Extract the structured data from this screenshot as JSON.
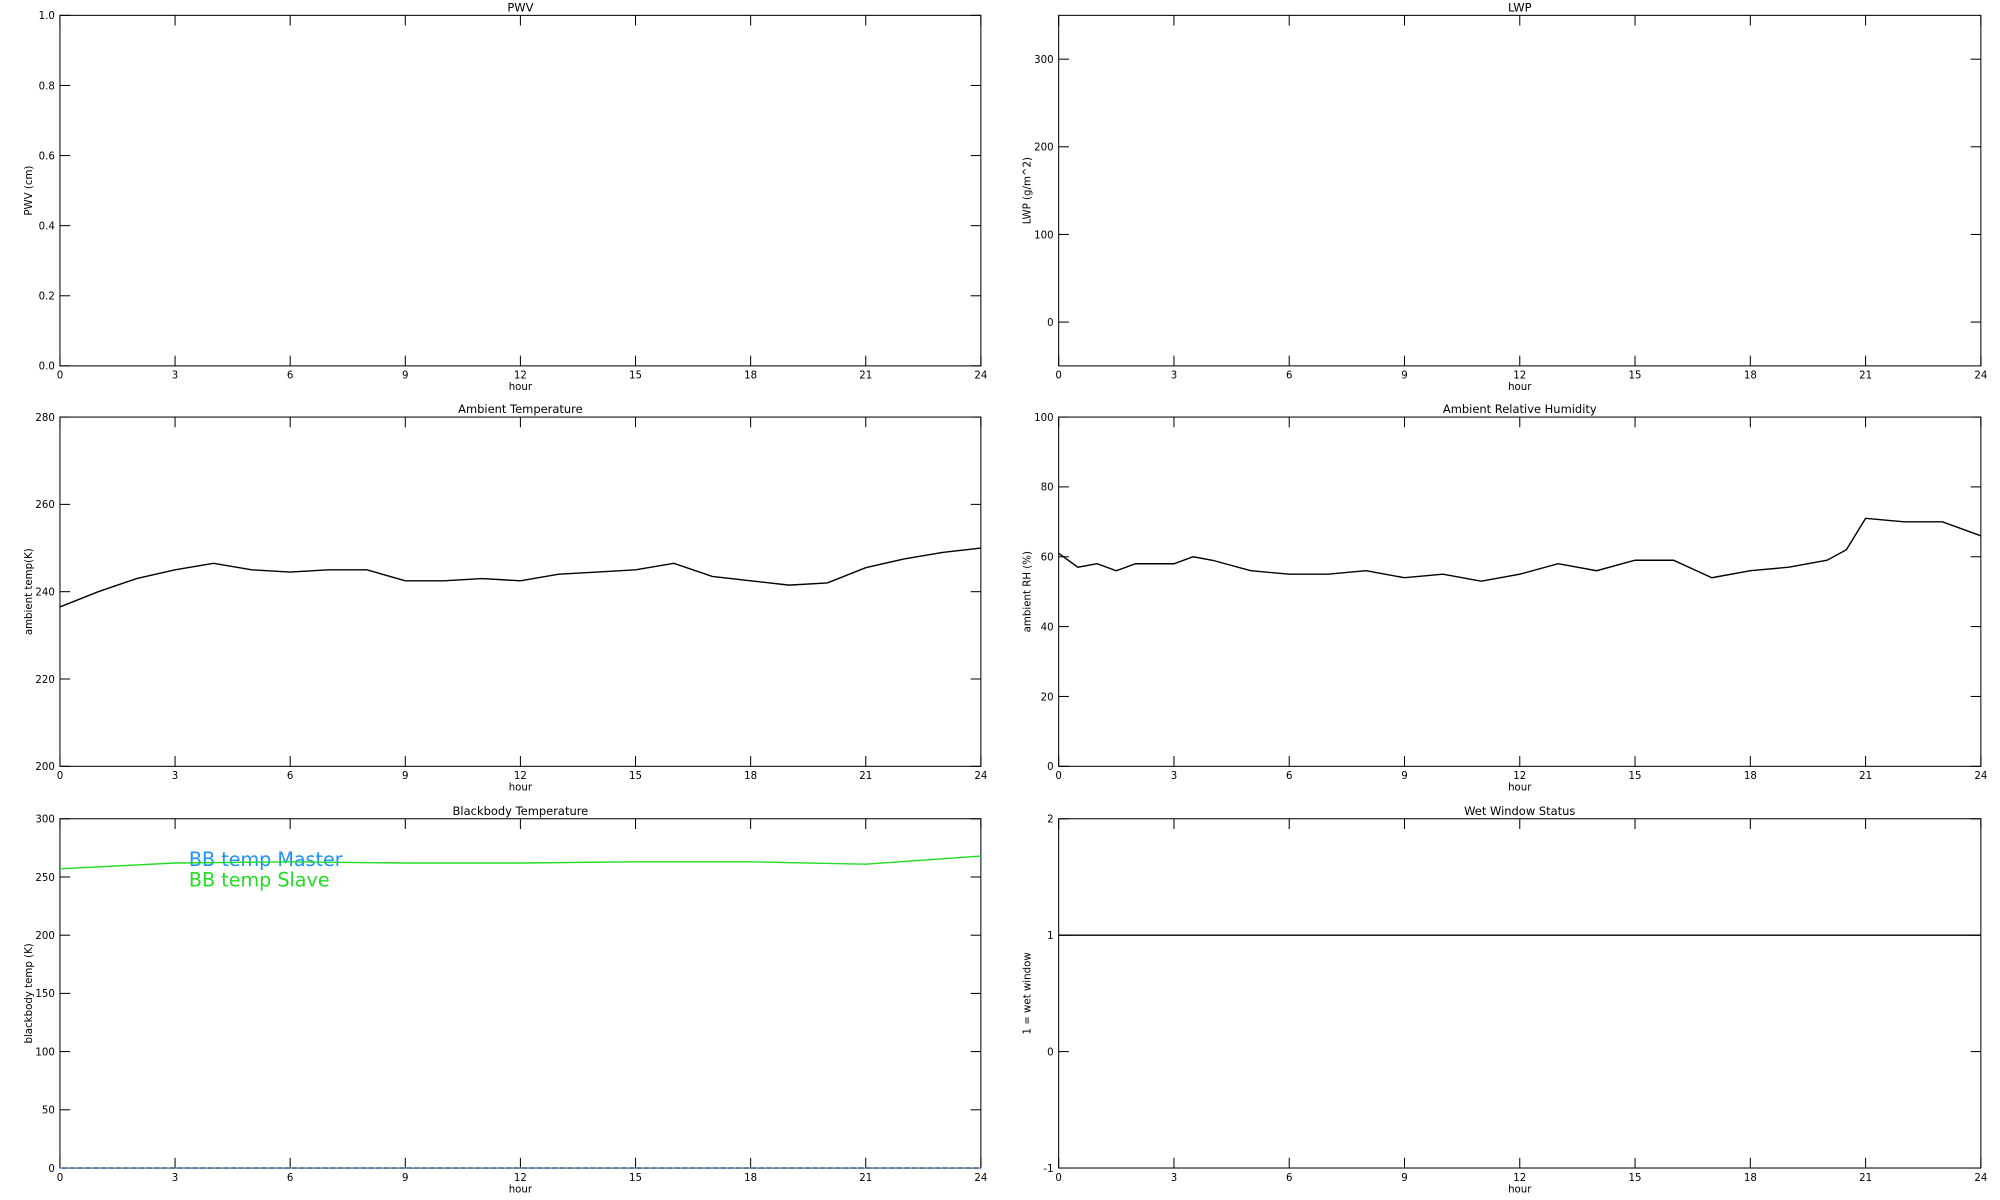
{
  "chart_data": [
    {
      "type": "line",
      "title": "PWV",
      "xlabel": "hour",
      "ylabel": "PWV (cm)",
      "xlim": [
        0,
        24
      ],
      "xticks": [
        0,
        3,
        6,
        9,
        12,
        15,
        18,
        21,
        24
      ],
      "ylim": [
        0,
        1
      ],
      "yticks": [
        {
          "value": 0,
          "label": "0.0"
        },
        {
          "value": 0.2,
          "label": "0.2"
        },
        {
          "value": 0.4,
          "label": "0.4"
        },
        {
          "value": 0.6,
          "label": "0.6"
        },
        {
          "value": 0.8,
          "label": "0.8"
        },
        {
          "value": 1,
          "label": "1.0"
        }
      ],
      "x": [],
      "series": []
    },
    {
      "type": "line",
      "title": "LWP",
      "xlabel": "hour",
      "ylabel": "LWP (g/m^2)",
      "xlim": [
        0,
        24
      ],
      "xticks": [
        0,
        3,
        6,
        9,
        12,
        15,
        18,
        21,
        24
      ],
      "ylim": [
        -50,
        350
      ],
      "yticks": [
        0,
        100,
        200,
        300
      ],
      "x": [],
      "series": []
    },
    {
      "type": "line",
      "title": "Ambient Temperature",
      "xlabel": "hour",
      "ylabel": "ambient temp(K)",
      "xlim": [
        0,
        24
      ],
      "xticks": [
        0,
        3,
        6,
        9,
        12,
        15,
        18,
        21,
        24
      ],
      "ylim": [
        200,
        280
      ],
      "yticks": [
        200,
        220,
        240,
        260,
        280
      ],
      "x": [
        0,
        1,
        2,
        3,
        4,
        5,
        6,
        7,
        8,
        9,
        10,
        11,
        12,
        13,
        14,
        15,
        16,
        17,
        18,
        19,
        20,
        21,
        22,
        23,
        24
      ],
      "series": [
        {
          "color": "#000000",
          "values": [
            236.5,
            240,
            243,
            245,
            246.5,
            245,
            244.5,
            245,
            245,
            242.5,
            242.5,
            243,
            242.5,
            244,
            244.5,
            245,
            246.5,
            243.5,
            242.5,
            241.5,
            242,
            245.5,
            247.5,
            249,
            250
          ]
        }
      ]
    },
    {
      "type": "line",
      "title": "Ambient Relative Humidity",
      "xlabel": "hour",
      "ylabel": "ambient RH (%)",
      "xlim": [
        0,
        24
      ],
      "xticks": [
        0,
        3,
        6,
        9,
        12,
        15,
        18,
        21,
        24
      ],
      "ylim": [
        0,
        100
      ],
      "yticks": [
        0,
        20,
        40,
        60,
        80,
        100
      ],
      "x": [
        0,
        0.5,
        1,
        1.5,
        2,
        3,
        3.5,
        4,
        5,
        6,
        7,
        8,
        9,
        10,
        11,
        12,
        13,
        14,
        15,
        16,
        17,
        18,
        19,
        20,
        20.5,
        21,
        22,
        23,
        24
      ],
      "series": [
        {
          "color": "#000000",
          "values": [
            61,
            57,
            58,
            56,
            58,
            58,
            60,
            59,
            56,
            55,
            55,
            56,
            54,
            55,
            53,
            55,
            58,
            56,
            59,
            59,
            54,
            56,
            57,
            59,
            62,
            71,
            70,
            70,
            66
          ]
        }
      ]
    },
    {
      "type": "line",
      "title": "Blackbody Temperature",
      "xlabel": "hour",
      "ylabel": "blackbody temp (K)",
      "xlim": [
        0,
        24
      ],
      "xticks": [
        0,
        3,
        6,
        9,
        12,
        15,
        18,
        21,
        24
      ],
      "ylim": [
        0,
        300
      ],
      "yticks": [
        0,
        50,
        100,
        150,
        200,
        250,
        300
      ],
      "legend": "upper left",
      "x": [
        0,
        3,
        6,
        9,
        12,
        15,
        18,
        21,
        24
      ],
      "series": [
        {
          "name": "BB temp Master",
          "color": "#1e90ff",
          "linestyle": "dotted",
          "values": [
            0,
            0,
            0,
            0,
            0,
            0,
            0,
            0,
            0
          ]
        },
        {
          "name": "BB temp Slave",
          "color": "#22dd22",
          "values": [
            257,
            262,
            263,
            262,
            262,
            263,
            263,
            261,
            268
          ]
        }
      ]
    },
    {
      "type": "line",
      "title": "Wet Window Status",
      "xlabel": "hour",
      "ylabel": "1 = wet window",
      "xlim": [
        0,
        24
      ],
      "xticks": [
        0,
        3,
        6,
        9,
        12,
        15,
        18,
        21,
        24
      ],
      "ylim": [
        -1,
        2
      ],
      "yticks": [
        -1,
        0,
        1,
        2
      ],
      "x": [
        0,
        24
      ],
      "series": [
        {
          "color": "#000000",
          "values": [
            1,
            1
          ]
        }
      ]
    }
  ]
}
